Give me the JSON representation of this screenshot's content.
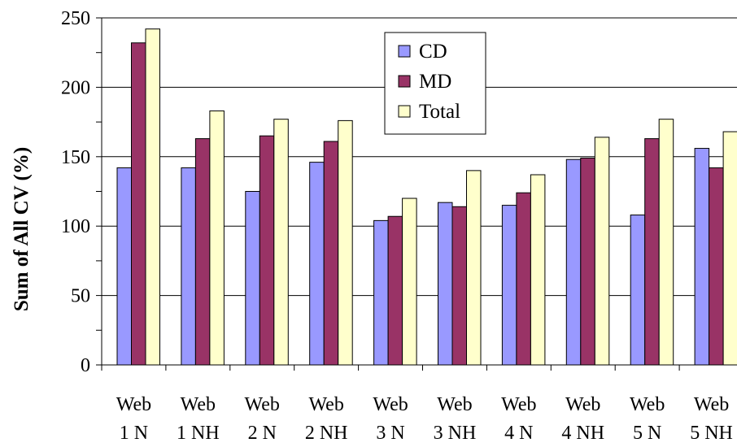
{
  "chart_data": {
    "type": "bar",
    "categories": [
      [
        "Web",
        "1 N"
      ],
      [
        "Web",
        "1 NH"
      ],
      [
        "Web",
        "2 N"
      ],
      [
        "Web",
        "2 NH"
      ],
      [
        "Web",
        "3 N"
      ],
      [
        "Web",
        "3 NH"
      ],
      [
        "Web",
        "4 N"
      ],
      [
        "Web",
        "4 NH"
      ],
      [
        "Web",
        "5 N"
      ],
      [
        "Web",
        "5 NH"
      ]
    ],
    "series": [
      {
        "name": "CD",
        "color": "#9999ff",
        "values": [
          142,
          142,
          125,
          146,
          104,
          117,
          115,
          148,
          108,
          156
        ]
      },
      {
        "name": "MD",
        "color": "#993366",
        "values": [
          232,
          163,
          165,
          161,
          107,
          114,
          124,
          149,
          163,
          142
        ]
      },
      {
        "name": "Total",
        "color": "#ffffcc",
        "values": [
          242,
          183,
          177,
          176,
          120,
          140,
          137,
          164,
          177,
          168
        ]
      }
    ],
    "title": "",
    "xlabel": "",
    "ylabel": "Sum of All CV (%)",
    "ylim": [
      0,
      250
    ],
    "yticks": [
      "0",
      "50",
      "100",
      "150",
      "200",
      "250"
    ],
    "grid": true,
    "legend_position": "top-center"
  }
}
